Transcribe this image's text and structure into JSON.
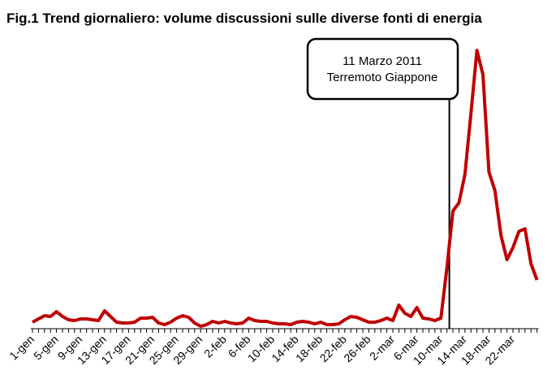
{
  "chart_data": {
    "type": "line",
    "title": "Fig.1 Trend giornaliero: volume discussioni sulle diverse fonti di energia",
    "annotation": [
      "11 Marzo 2011",
      "Terremoto Giappone"
    ],
    "categories": [
      "1-gen",
      null,
      null,
      null,
      "5-gen",
      null,
      null,
      null,
      "9-gen",
      null,
      null,
      null,
      "13-gen",
      null,
      null,
      null,
      "17-gen",
      null,
      null,
      null,
      "21-gen",
      null,
      null,
      null,
      "25-gen",
      null,
      null,
      null,
      "29-gen",
      null,
      null,
      null,
      "2-feb",
      null,
      null,
      null,
      "6-feb",
      null,
      null,
      null,
      "10-feb",
      null,
      null,
      null,
      "14-feb",
      null,
      null,
      null,
      "18-feb",
      null,
      null,
      null,
      "22-feb",
      null,
      null,
      null,
      "26-feb",
      null,
      null,
      null,
      "2-mar",
      null,
      null,
      null,
      "6-mar",
      null,
      null,
      null,
      "10-mar",
      null,
      null,
      null,
      "14-mar",
      null,
      null,
      null,
      "18-mar",
      null,
      null,
      null,
      "22-mar",
      null,
      null,
      null,
      null
    ],
    "series": [
      {
        "color": "#c00000",
        "values": [
          8,
          12,
          16,
          15,
          21,
          15,
          11,
          10,
          12,
          12,
          11,
          10,
          22,
          15,
          8,
          7,
          7,
          8,
          13,
          13,
          14,
          7,
          5,
          8,
          13,
          16,
          14,
          7,
          3,
          5,
          9,
          7,
          9,
          7,
          6,
          7,
          13,
          10,
          9,
          9,
          7,
          6,
          6,
          5,
          8,
          9,
          8,
          6,
          8,
          5,
          5,
          6,
          11,
          15,
          14,
          11,
          8,
          8,
          10,
          13,
          10,
          29,
          19,
          15,
          26,
          13,
          12,
          10,
          13,
          75,
          145,
          155,
          190,
          265,
          343,
          313,
          193,
          170,
          115,
          85,
          100,
          120,
          123,
          80,
          60
        ]
      }
    ]
  }
}
